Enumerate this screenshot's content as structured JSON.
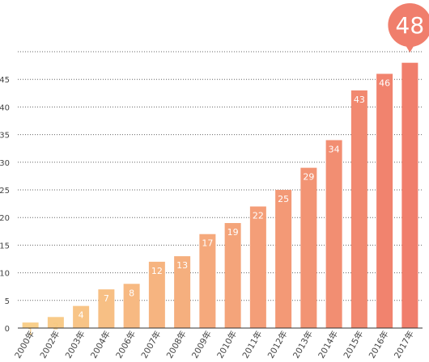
{
  "chart_data": {
    "type": "bar",
    "categories": [
      "2000年",
      "2002年",
      "2003年",
      "2004年",
      "2006年",
      "2007年",
      "2008年",
      "2009年",
      "2010年",
      "2011年",
      "2012年",
      "2013年",
      "2014年",
      "2015年",
      "2016年",
      "2017年"
    ],
    "values": [
      1,
      2,
      4,
      7,
      8,
      12,
      13,
      17,
      19,
      22,
      25,
      29,
      34,
      43,
      46,
      48
    ],
    "ylim": [
      0,
      50
    ],
    "yticks": [
      0,
      5,
      10,
      15,
      20,
      25,
      30,
      35,
      40,
      45
    ],
    "grid": true,
    "highlight": {
      "category": "2017年",
      "label": "48"
    },
    "colors": {
      "start": "#F9CF8A",
      "end": "#F07E6C",
      "low_value_label": "#F5C97E",
      "axis": "#333333",
      "grid": "#666666"
    }
  }
}
